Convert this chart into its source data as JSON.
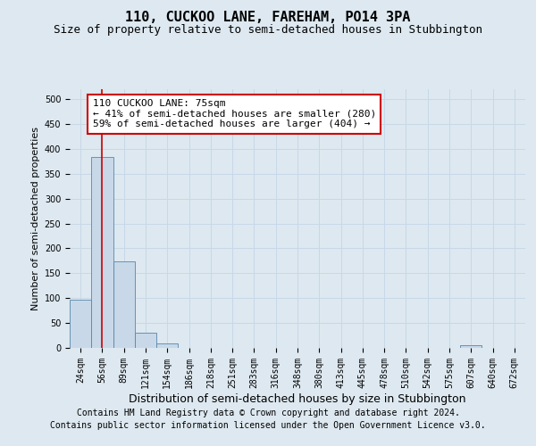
{
  "title": "110, CUCKOO LANE, FAREHAM, PO14 3PA",
  "subtitle": "Size of property relative to semi-detached houses in Stubbington",
  "xlabel": "Distribution of semi-detached houses by size in Stubbington",
  "ylabel": "Number of semi-detached properties",
  "footer1": "Contains HM Land Registry data © Crown copyright and database right 2024.",
  "footer2": "Contains public sector information licensed under the Open Government Licence v3.0.",
  "categories": [
    "24sqm",
    "56sqm",
    "89sqm",
    "121sqm",
    "154sqm",
    "186sqm",
    "218sqm",
    "251sqm",
    "283sqm",
    "316sqm",
    "348sqm",
    "380sqm",
    "413sqm",
    "445sqm",
    "478sqm",
    "510sqm",
    "542sqm",
    "575sqm",
    "607sqm",
    "640sqm",
    "672sqm"
  ],
  "values": [
    97,
    383,
    174,
    30,
    9,
    0,
    0,
    0,
    0,
    0,
    0,
    0,
    0,
    0,
    0,
    0,
    0,
    0,
    5,
    0,
    0
  ],
  "bar_color": "#c8d8e8",
  "bar_edge_color": "#5588aa",
  "annotation_text": "110 CUCKOO LANE: 75sqm\n← 41% of semi-detached houses are smaller (280)\n59% of semi-detached houses are larger (404) →",
  "annotation_box_color": "#ffffff",
  "annotation_box_edge_color": "#cc0000",
  "vline_x": 1.0,
  "vline_color": "#cc0000",
  "ylim": [
    0,
    520
  ],
  "yticks": [
    0,
    50,
    100,
    150,
    200,
    250,
    300,
    350,
    400,
    450,
    500
  ],
  "grid_color": "#c8d8e8",
  "bg_color": "#dde8f0",
  "title_fontsize": 11,
  "subtitle_fontsize": 9,
  "xlabel_fontsize": 9,
  "ylabel_fontsize": 8,
  "tick_fontsize": 7,
  "annotation_fontsize": 8,
  "footer_fontsize": 7
}
